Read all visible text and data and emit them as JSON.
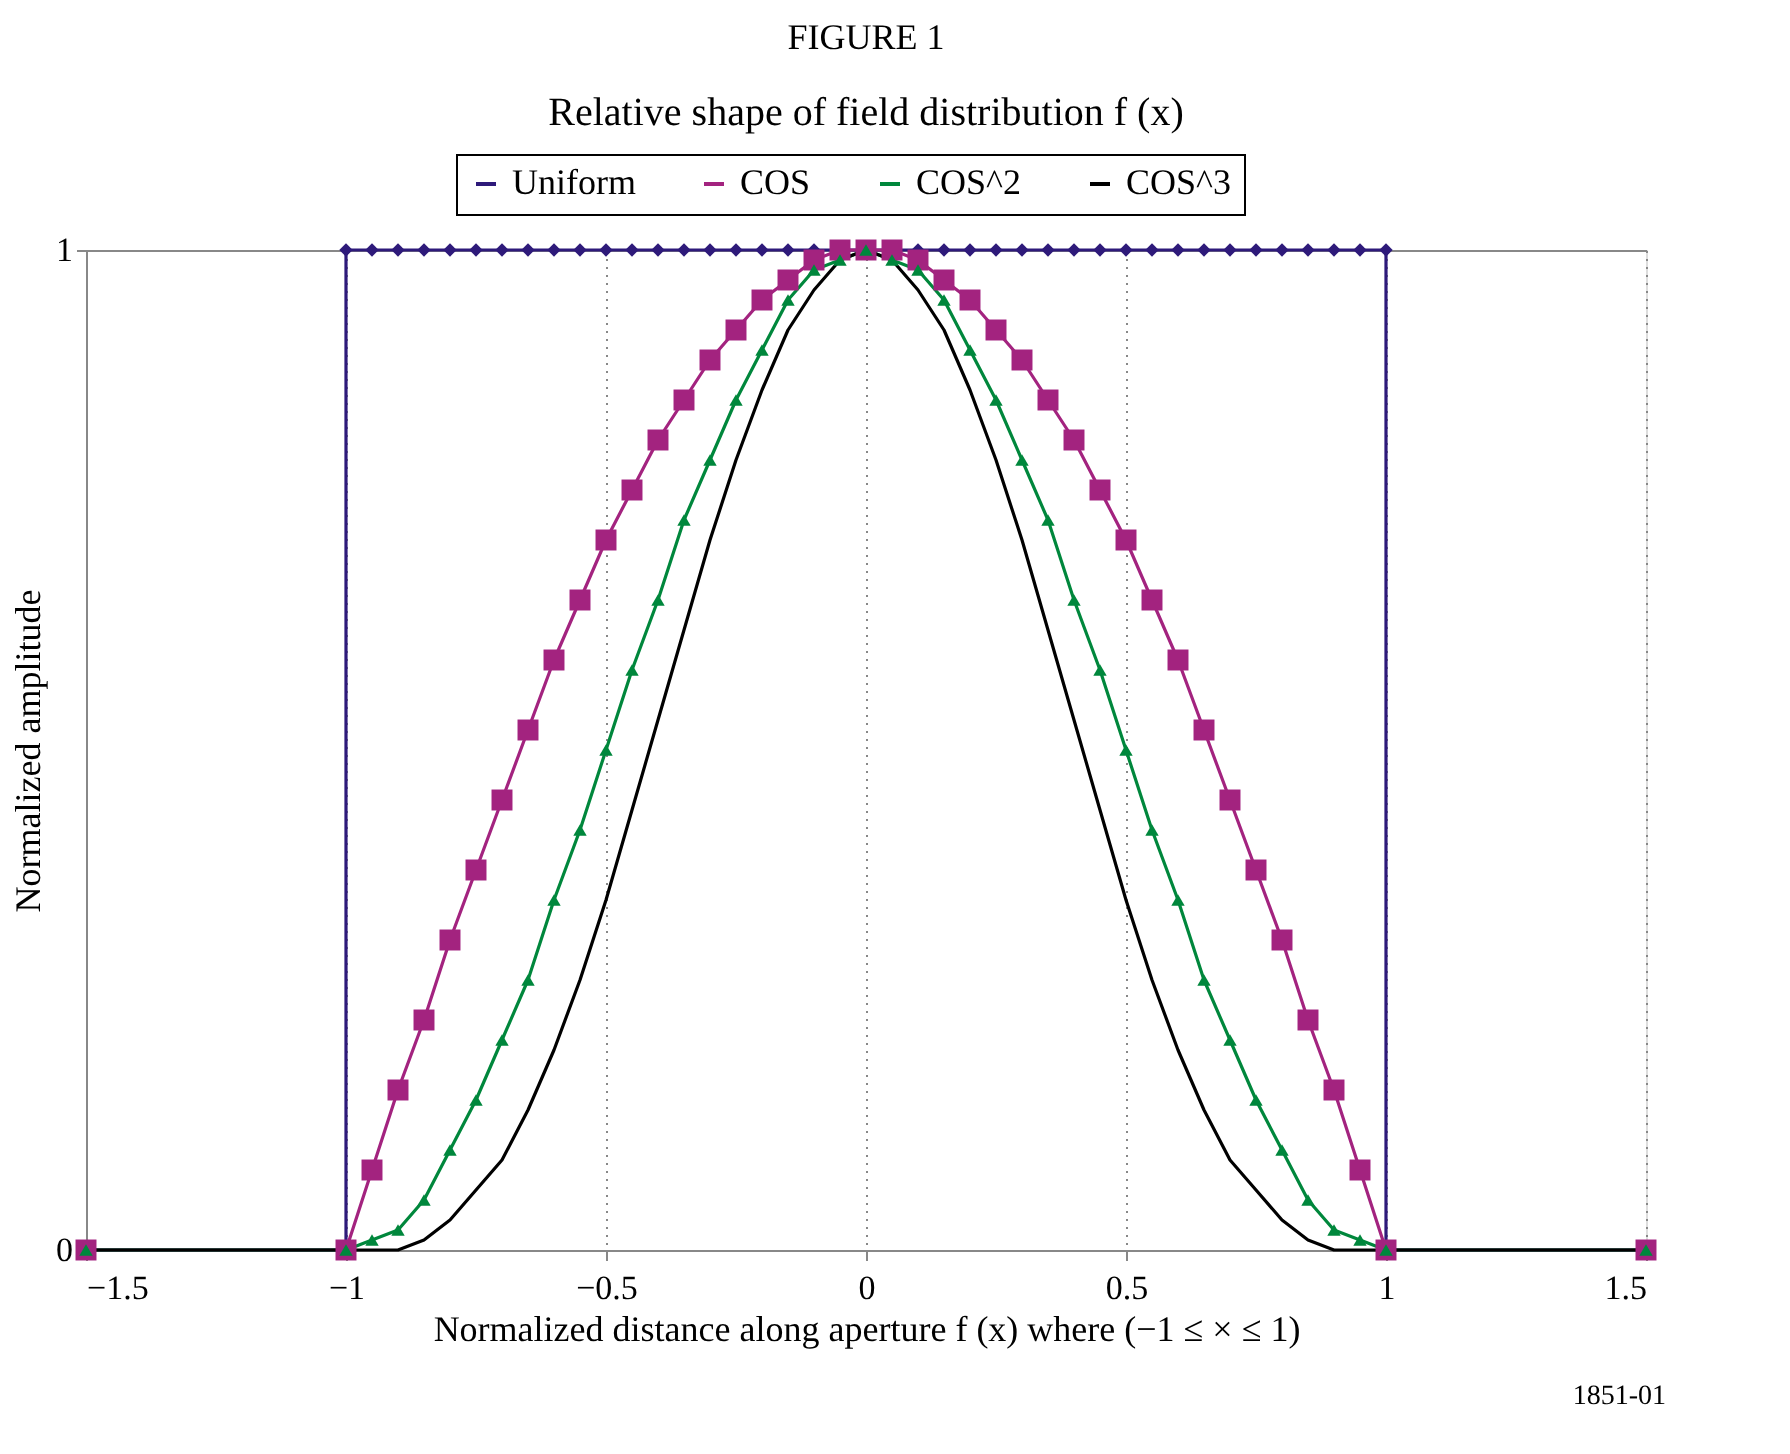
{
  "chart_data": {
    "type": "line",
    "title": "FIGURE 1",
    "subtitle": "Relative shape of field distribution f (x)",
    "xlabel": "Normalized distance along aperture f (x) where (−1 ≤ × ≤ 1)",
    "ylabel": "Normalized amplitude",
    "annotations": [
      "1851-01"
    ],
    "x": [
      -1.5,
      -1,
      -0.95,
      -0.9,
      -0.85,
      -0.8,
      -0.75,
      -0.7,
      -0.65,
      -0.6,
      -0.55,
      -0.5,
      -0.45,
      -0.4,
      -0.35,
      -0.3,
      -0.25,
      -0.2,
      -0.15,
      -0.1,
      -0.05,
      0,
      0.05,
      0.1,
      0.15,
      0.2,
      0.25,
      0.3,
      0.35,
      0.4,
      0.45,
      0.5,
      0.55,
      0.6,
      0.65,
      0.7,
      0.75,
      0.8,
      0.85,
      0.9,
      0.95,
      1,
      1.5
    ],
    "series": [
      {
        "name": "Uniform",
        "color": "#2e1a7a",
        "marker": "diamond",
        "x": [
          -1.5,
          -1,
          -1,
          -0.95,
          -0.9,
          -0.85,
          -0.8,
          -0.75,
          -0.7,
          -0.65,
          -0.6,
          -0.55,
          -0.5,
          -0.45,
          -0.4,
          -0.35,
          -0.3,
          -0.25,
          -0.2,
          -0.15,
          -0.1,
          -0.05,
          0,
          0.05,
          0.1,
          0.15,
          0.2,
          0.25,
          0.3,
          0.35,
          0.4,
          0.45,
          0.5,
          0.55,
          0.6,
          0.65,
          0.7,
          0.75,
          0.8,
          0.85,
          0.9,
          0.95,
          1,
          1,
          1.5
        ],
        "values": [
          0,
          0,
          1,
          1,
          1,
          1,
          1,
          1,
          1,
          1,
          1,
          1,
          1,
          1,
          1,
          1,
          1,
          1,
          1,
          1,
          1,
          1,
          1,
          1,
          1,
          1,
          1,
          1,
          1,
          1,
          1,
          1,
          1,
          1,
          1,
          1,
          1,
          1,
          1,
          1,
          1,
          1,
          1,
          0,
          0
        ]
      },
      {
        "name": "COS",
        "color": "#a3237f",
        "marker": "square",
        "values": [
          0,
          0,
          0.08,
          0.16,
          0.23,
          0.31,
          0.38,
          0.45,
          0.52,
          0.59,
          0.65,
          0.71,
          0.76,
          0.81,
          0.85,
          0.89,
          0.92,
          0.95,
          0.97,
          0.99,
          1.0,
          1,
          1.0,
          0.99,
          0.97,
          0.95,
          0.92,
          0.89,
          0.85,
          0.81,
          0.76,
          0.71,
          0.65,
          0.59,
          0.52,
          0.45,
          0.38,
          0.31,
          0.23,
          0.16,
          0.08,
          0,
          0
        ]
      },
      {
        "name": "COS^2",
        "color": "#00873c",
        "marker": "triangle",
        "values": [
          0,
          0,
          0.01,
          0.02,
          0.05,
          0.1,
          0.15,
          0.21,
          0.27,
          0.35,
          0.42,
          0.5,
          0.58,
          0.65,
          0.73,
          0.79,
          0.85,
          0.9,
          0.95,
          0.98,
          0.99,
          1,
          0.99,
          0.98,
          0.95,
          0.9,
          0.85,
          0.79,
          0.73,
          0.65,
          0.58,
          0.5,
          0.42,
          0.35,
          0.27,
          0.21,
          0.15,
          0.1,
          0.05,
          0.02,
          0.01,
          0,
          0
        ]
      },
      {
        "name": "COS^3",
        "color": "#000000",
        "marker": "none",
        "values": [
          0,
          0,
          0,
          0,
          0.01,
          0.03,
          0.06,
          0.09,
          0.14,
          0.2,
          0.27,
          0.35,
          0.44,
          0.53,
          0.62,
          0.71,
          0.79,
          0.86,
          0.92,
          0.96,
          0.99,
          1,
          0.99,
          0.96,
          0.92,
          0.86,
          0.79,
          0.71,
          0.62,
          0.53,
          0.44,
          0.35,
          0.27,
          0.2,
          0.14,
          0.09,
          0.06,
          0.03,
          0.01,
          0,
          0,
          0,
          0
        ]
      }
    ],
    "xlim": [
      -1.5,
      1.5
    ],
    "xticks": [
      {
        "value": -1.5,
        "label": "−1.5"
      },
      {
        "value": -1,
        "label": "−1"
      },
      {
        "value": -0.5,
        "label": "−0.5"
      },
      0,
      0.5,
      1,
      1.5
    ],
    "ylim": [
      0,
      1
    ],
    "yticks": [
      0,
      1
    ],
    "grid": true,
    "legend": "top",
    "line_style": "solid"
  }
}
